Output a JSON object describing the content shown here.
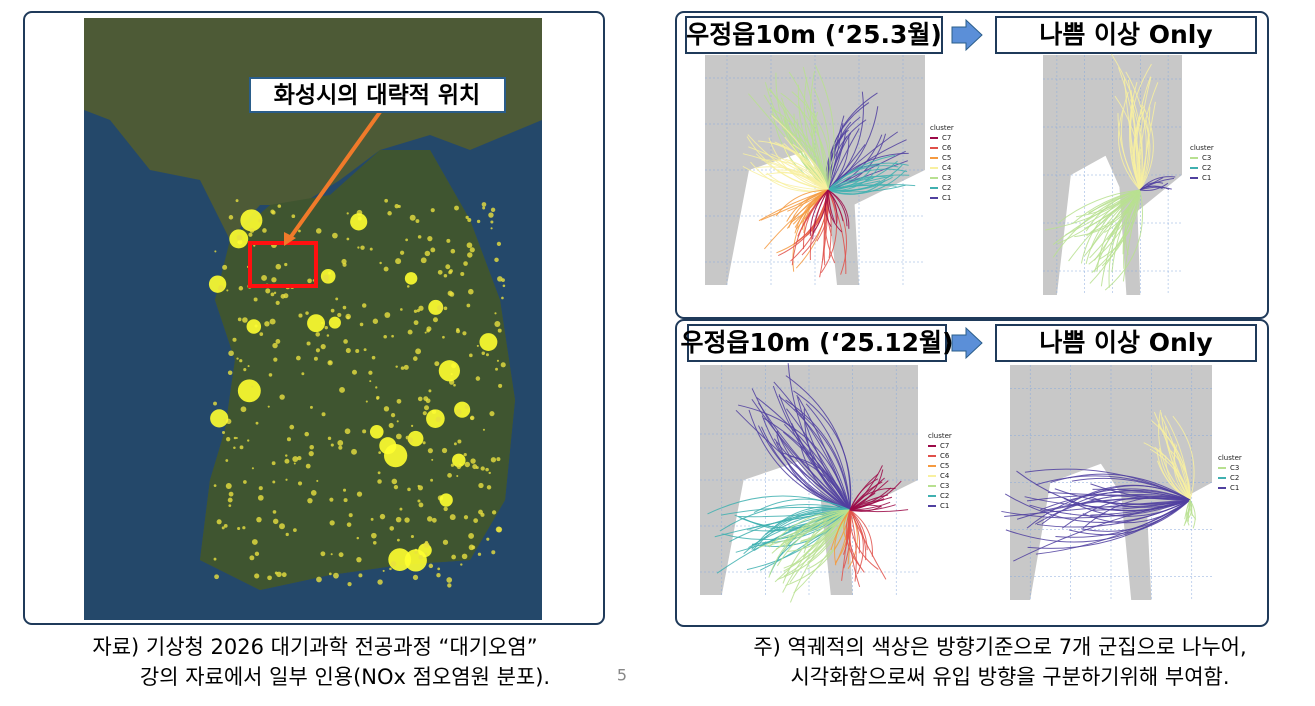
{
  "left": {
    "callout": "화성시의 대략적 위치",
    "caption": [
      "자료) 기상청 2026 대기과학 전공과정 “대기오염”",
      "강의 자료에서 일부 인용(NOx 점오염원 분포)."
    ],
    "page_number": "5"
  },
  "right": {
    "panels": [
      {
        "title": "우정읍10m (‘25.3월)",
        "filtered_title": "나쁨 이상 Only",
        "legend_title": "cluster",
        "legend": [
          "C7",
          "C6",
          "C5",
          "C4",
          "C3",
          "C2",
          "C1"
        ],
        "filtered_legend": [
          "C3",
          "C2",
          "C1"
        ]
      },
      {
        "title": "우정읍10m (‘25.12월)",
        "filtered_title": "나쁨 이상 Only",
        "legend_title": "cluster",
        "legend": [
          "C7",
          "C6",
          "C5",
          "C4",
          "C3",
          "C2",
          "C1"
        ],
        "filtered_legend": [
          "C3",
          "C2",
          "C1"
        ]
      }
    ],
    "caption": [
      "주) 역궤적의 색상은 방향기준으로 7개 군집으로 나누어,",
      "시각화함으로써 유입 방향을 구분하기위해 부여함."
    ]
  }
}
